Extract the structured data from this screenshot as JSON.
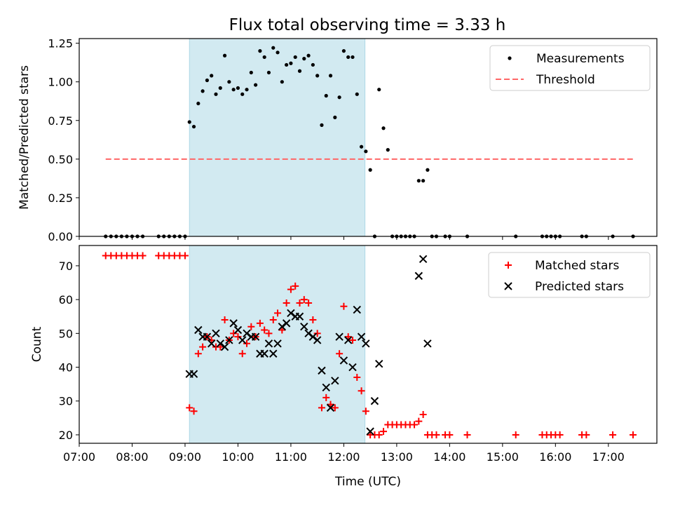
{
  "figure_title": "Flux total observing time = 3.33 h",
  "chart_data": [
    {
      "type": "scatter",
      "ylabel": "Matched/Predicted stars",
      "xlim": [
        "07:00",
        "17:55"
      ],
      "ylim": [
        0,
        1.28
      ],
      "yticks": [
        "0.00",
        "0.25",
        "0.50",
        "0.75",
        "1.00",
        "1.25"
      ],
      "legend_position": "top-right",
      "shaded_span": {
        "start": "09:05",
        "end": "12:24",
        "color": "#add8e6"
      },
      "threshold": {
        "name": "Threshold",
        "y": 0.5,
        "x_from": "07:30",
        "x_to": "17:30",
        "color": "#ff6666",
        "style": "dashed"
      },
      "series": [
        {
          "name": "Measurements",
          "marker": "dot",
          "color": "#000000",
          "points": [
            [
              "07:30",
              0
            ],
            [
              "07:36",
              0
            ],
            [
              "07:42",
              0
            ],
            [
              "07:48",
              0
            ],
            [
              "07:54",
              0
            ],
            [
              "08:00",
              0
            ],
            [
              "08:06",
              0
            ],
            [
              "08:12",
              0
            ],
            [
              "08:30",
              0
            ],
            [
              "08:36",
              0
            ],
            [
              "08:42",
              0
            ],
            [
              "08:48",
              0
            ],
            [
              "08:54",
              0
            ],
            [
              "09:00",
              0
            ],
            [
              "09:05",
              0.74
            ],
            [
              "09:10",
              0.71
            ],
            [
              "09:15",
              0.86
            ],
            [
              "09:20",
              0.94
            ],
            [
              "09:25",
              1.01
            ],
            [
              "09:30",
              1.04
            ],
            [
              "09:35",
              0.92
            ],
            [
              "09:40",
              0.96
            ],
            [
              "09:45",
              1.17
            ],
            [
              "09:50",
              1.0
            ],
            [
              "09:55",
              0.95
            ],
            [
              "10:00",
              0.96
            ],
            [
              "10:05",
              0.92
            ],
            [
              "10:10",
              0.95
            ],
            [
              "10:15",
              1.06
            ],
            [
              "10:20",
              0.98
            ],
            [
              "10:25",
              1.2
            ],
            [
              "10:30",
              1.16
            ],
            [
              "10:35",
              1.06
            ],
            [
              "10:40",
              1.22
            ],
            [
              "10:45",
              1.19
            ],
            [
              "10:50",
              1.0
            ],
            [
              "10:55",
              1.11
            ],
            [
              "11:00",
              1.12
            ],
            [
              "11:05",
              1.16
            ],
            [
              "11:10",
              1.07
            ],
            [
              "11:15",
              1.15
            ],
            [
              "11:20",
              1.17
            ],
            [
              "11:25",
              1.11
            ],
            [
              "11:30",
              1.04
            ],
            [
              "11:35",
              0.72
            ],
            [
              "11:40",
              0.91
            ],
            [
              "11:45",
              1.04
            ],
            [
              "11:50",
              0.77
            ],
            [
              "11:55",
              0.9
            ],
            [
              "12:00",
              1.2
            ],
            [
              "12:05",
              1.16
            ],
            [
              "12:10",
              1.16
            ],
            [
              "12:15",
              0.92
            ],
            [
              "12:20",
              0.58
            ],
            [
              "12:25",
              0.55
            ],
            [
              "12:30",
              0.43
            ],
            [
              "12:35",
              0
            ],
            [
              "12:40",
              0.95
            ],
            [
              "12:45",
              0.7
            ],
            [
              "12:50",
              0.56
            ],
            [
              "12:55",
              0
            ],
            [
              "13:00",
              0
            ],
            [
              "13:05",
              0
            ],
            [
              "13:10",
              0
            ],
            [
              "13:15",
              0
            ],
            [
              "13:20",
              0
            ],
            [
              "13:25",
              0.36
            ],
            [
              "13:30",
              0.36
            ],
            [
              "13:35",
              0.43
            ],
            [
              "13:40",
              0
            ],
            [
              "13:45",
              0
            ],
            [
              "13:55",
              0
            ],
            [
              "14:00",
              0
            ],
            [
              "14:20",
              0
            ],
            [
              "15:15",
              0
            ],
            [
              "15:45",
              0
            ],
            [
              "15:50",
              0
            ],
            [
              "15:55",
              0
            ],
            [
              "16:00",
              0
            ],
            [
              "16:05",
              0
            ],
            [
              "16:30",
              0
            ],
            [
              "16:35",
              0
            ],
            [
              "17:05",
              0
            ],
            [
              "17:28",
              0
            ]
          ]
        }
      ]
    },
    {
      "type": "scatter",
      "xlabel": "Time (UTC)",
      "ylabel": "Count",
      "xlim": [
        "07:00",
        "17:55"
      ],
      "ylim": [
        17.5,
        76
      ],
      "xticks": [
        "07:00",
        "08:00",
        "09:00",
        "10:00",
        "11:00",
        "12:00",
        "13:00",
        "14:00",
        "15:00",
        "16:00",
        "17:00"
      ],
      "yticks": [
        "20",
        "30",
        "40",
        "50",
        "60",
        "70"
      ],
      "legend_position": "top-right",
      "shaded_span": {
        "start": "09:05",
        "end": "12:24",
        "color": "#add8e6"
      },
      "series": [
        {
          "name": "Matched stars",
          "marker": "plus",
          "color": "#ff0000",
          "points": [
            [
              "07:30",
              73
            ],
            [
              "07:36",
              73
            ],
            [
              "07:42",
              73
            ],
            [
              "07:48",
              73
            ],
            [
              "07:54",
              73
            ],
            [
              "08:00",
              73
            ],
            [
              "08:06",
              73
            ],
            [
              "08:12",
              73
            ],
            [
              "08:30",
              73
            ],
            [
              "08:36",
              73
            ],
            [
              "08:42",
              73
            ],
            [
              "08:48",
              73
            ],
            [
              "08:54",
              73
            ],
            [
              "09:00",
              73
            ],
            [
              "09:05",
              28
            ],
            [
              "09:10",
              27
            ],
            [
              "09:15",
              44
            ],
            [
              "09:20",
              46
            ],
            [
              "09:25",
              49
            ],
            [
              "09:30",
              48
            ],
            [
              "09:35",
              46
            ],
            [
              "09:40",
              46
            ],
            [
              "09:45",
              54
            ],
            [
              "09:50",
              48
            ],
            [
              "09:55",
              50
            ],
            [
              "10:00",
              49
            ],
            [
              "10:05",
              44
            ],
            [
              "10:10",
              47
            ],
            [
              "10:15",
              52
            ],
            [
              "10:20",
              49
            ],
            [
              "10:25",
              53
            ],
            [
              "10:30",
              51
            ],
            [
              "10:35",
              50
            ],
            [
              "10:40",
              54
            ],
            [
              "10:45",
              56
            ],
            [
              "10:50",
              51
            ],
            [
              "10:55",
              59
            ],
            [
              "11:00",
              63
            ],
            [
              "11:05",
              64
            ],
            [
              "11:10",
              59
            ],
            [
              "11:15",
              60
            ],
            [
              "11:20",
              59
            ],
            [
              "11:25",
              54
            ],
            [
              "11:30",
              50
            ],
            [
              "11:35",
              28
            ],
            [
              "11:40",
              31
            ],
            [
              "11:45",
              29
            ],
            [
              "11:50",
              28
            ],
            [
              "11:55",
              44
            ],
            [
              "12:00",
              58
            ],
            [
              "12:05",
              49
            ],
            [
              "12:10",
              48
            ],
            [
              "12:15",
              37
            ],
            [
              "12:20",
              33
            ],
            [
              "12:25",
              27
            ],
            [
              "12:30",
              20
            ],
            [
              "12:35",
              20
            ],
            [
              "12:40",
              20
            ],
            [
              "12:45",
              21
            ],
            [
              "12:50",
              23
            ],
            [
              "12:55",
              23
            ],
            [
              "13:00",
              23
            ],
            [
              "13:05",
              23
            ],
            [
              "13:10",
              23
            ],
            [
              "13:15",
              23
            ],
            [
              "13:20",
              23
            ],
            [
              "13:25",
              24
            ],
            [
              "13:30",
              26
            ],
            [
              "13:35",
              20
            ],
            [
              "13:40",
              20
            ],
            [
              "13:45",
              20
            ],
            [
              "13:55",
              20
            ],
            [
              "14:00",
              20
            ],
            [
              "14:20",
              20
            ],
            [
              "15:15",
              20
            ],
            [
              "15:45",
              20
            ],
            [
              "15:50",
              20
            ],
            [
              "15:55",
              20
            ],
            [
              "16:00",
              20
            ],
            [
              "16:05",
              20
            ],
            [
              "16:30",
              20
            ],
            [
              "16:35",
              20
            ],
            [
              "17:05",
              20
            ],
            [
              "17:28",
              20
            ]
          ]
        },
        {
          "name": "Predicted stars",
          "marker": "x",
          "color": "#000000",
          "points": [
            [
              "09:05",
              38
            ],
            [
              "09:10",
              38
            ],
            [
              "09:15",
              51
            ],
            [
              "09:20",
              49
            ],
            [
              "09:25",
              49
            ],
            [
              "09:30",
              47
            ],
            [
              "09:35",
              50
            ],
            [
              "09:40",
              47
            ],
            [
              "09:45",
              46
            ],
            [
              "09:50",
              48
            ],
            [
              "09:55",
              53
            ],
            [
              "10:00",
              51
            ],
            [
              "10:05",
              48
            ],
            [
              "10:10",
              50
            ],
            [
              "10:15",
              49
            ],
            [
              "10:20",
              49
            ],
            [
              "10:25",
              44
            ],
            [
              "10:30",
              44
            ],
            [
              "10:35",
              47
            ],
            [
              "10:40",
              44
            ],
            [
              "10:45",
              47
            ],
            [
              "10:50",
              52
            ],
            [
              "10:55",
              53
            ],
            [
              "11:00",
              56
            ],
            [
              "11:05",
              55
            ],
            [
              "11:10",
              55
            ],
            [
              "11:15",
              52
            ],
            [
              "11:20",
              50
            ],
            [
              "11:25",
              49
            ],
            [
              "11:30",
              48
            ],
            [
              "11:35",
              39
            ],
            [
              "11:40",
              34
            ],
            [
              "11:45",
              28
            ],
            [
              "11:50",
              36
            ],
            [
              "11:55",
              49
            ],
            [
              "12:00",
              42
            ],
            [
              "12:05",
              48
            ],
            [
              "12:10",
              40
            ],
            [
              "12:15",
              57
            ],
            [
              "12:20",
              49
            ],
            [
              "12:25",
              47
            ],
            [
              "12:30",
              21
            ],
            [
              "12:35",
              30
            ],
            [
              "12:40",
              41
            ],
            [
              "13:25",
              67
            ],
            [
              "13:30",
              72
            ],
            [
              "13:35",
              47
            ]
          ]
        }
      ]
    }
  ]
}
